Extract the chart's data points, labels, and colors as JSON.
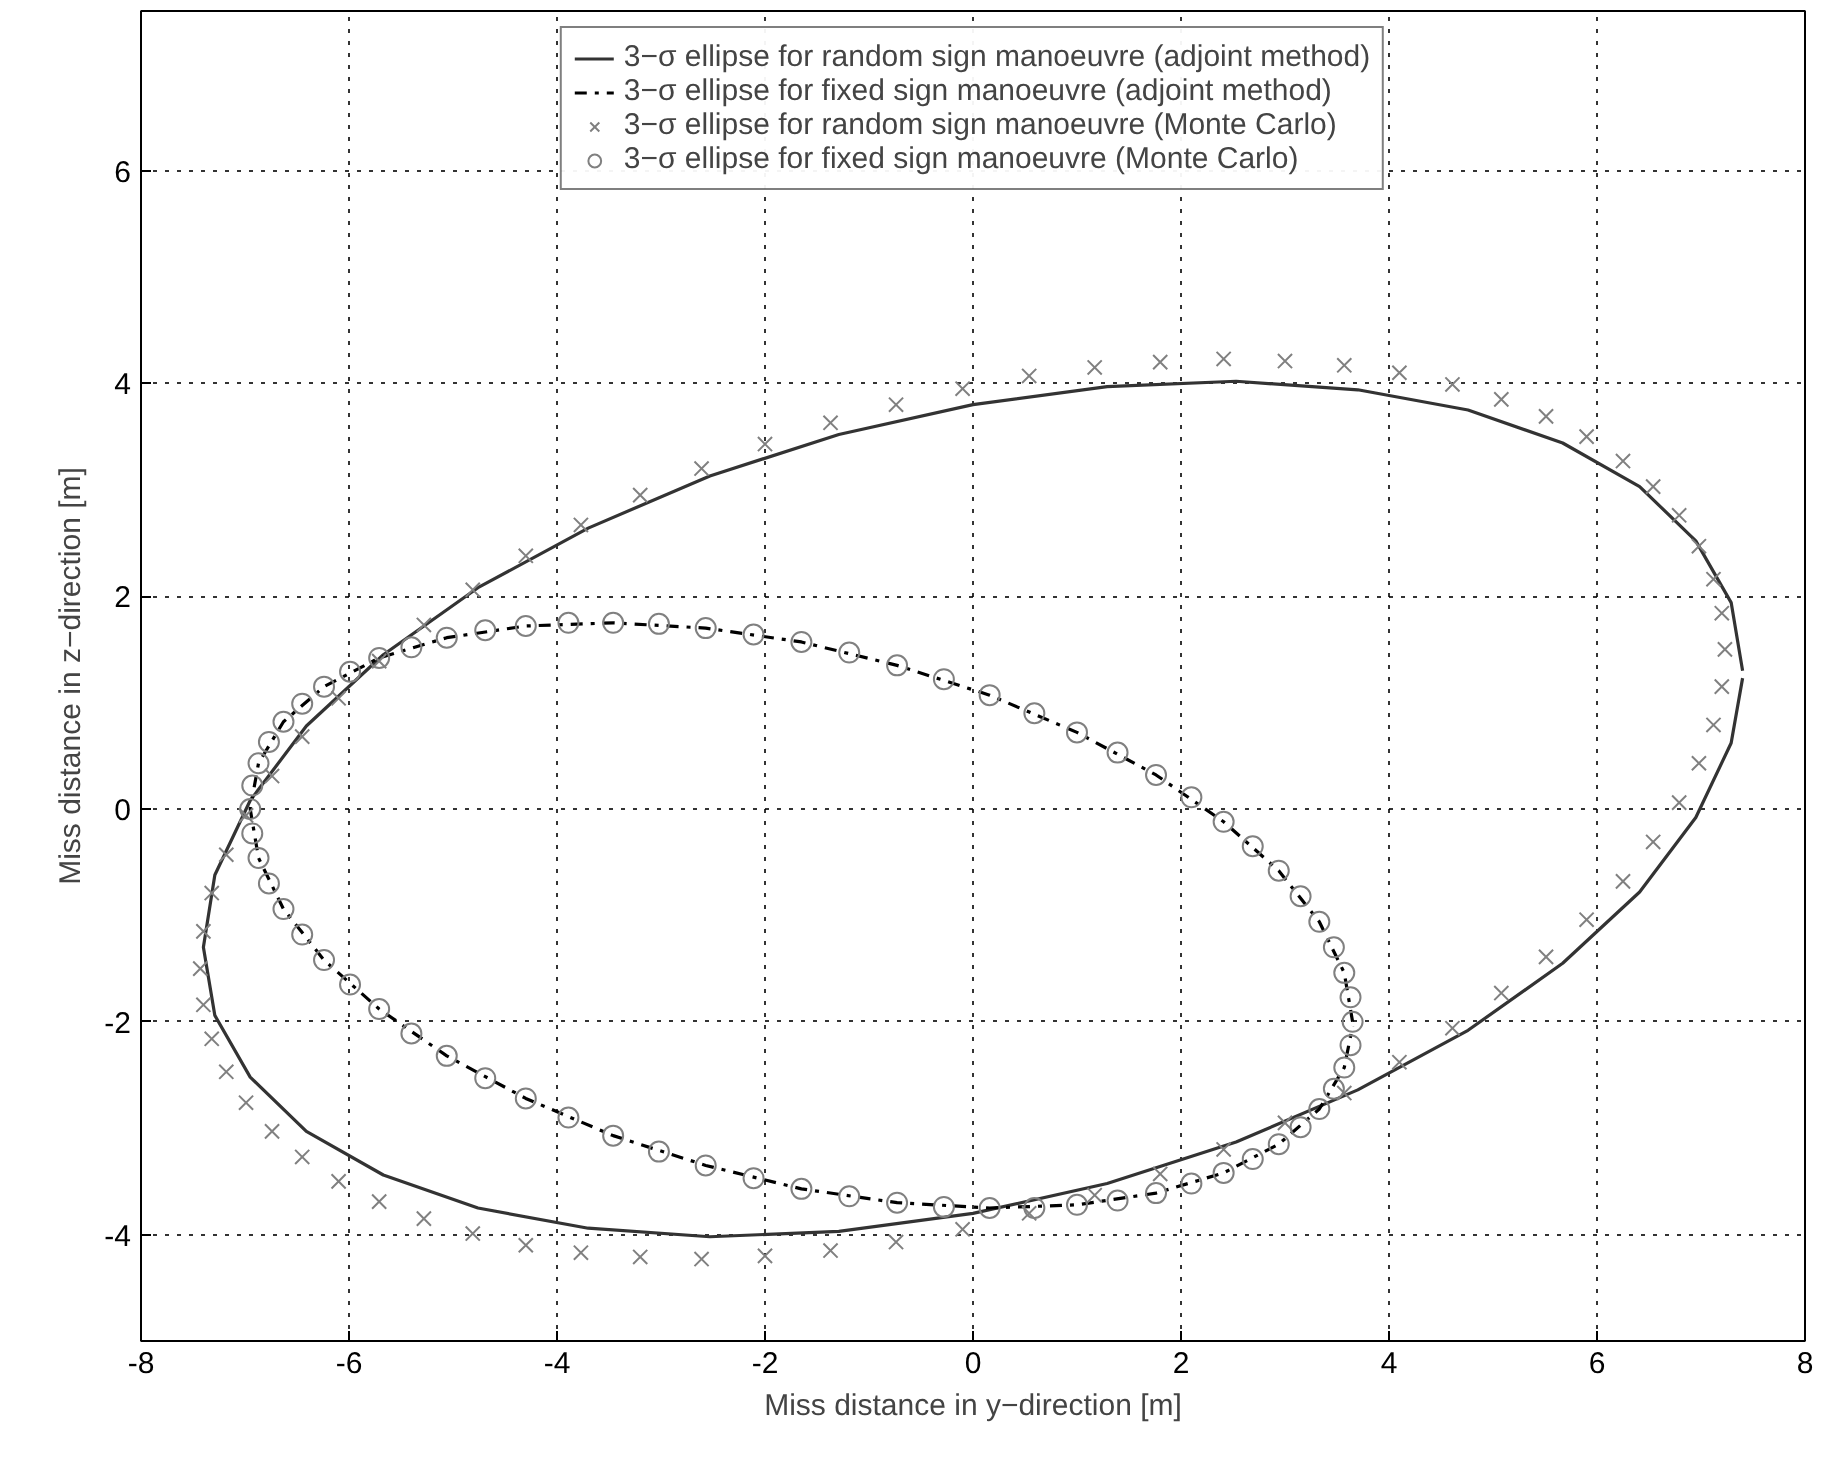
{
  "chart_data": {
    "type": "line",
    "xlabel": "Miss distance in y−direction [m]",
    "ylabel": "Miss distance in z−direction [m]",
    "xlim": [
      -8,
      8
    ],
    "ylim": [
      -5,
      7.5
    ],
    "xticks": [
      -8,
      -6,
      -4,
      -2,
      0,
      2,
      4,
      6,
      8
    ],
    "yticks": [
      -4,
      -2,
      0,
      2,
      4,
      6
    ],
    "grid": true,
    "legend": "top",
    "series": [
      {
        "name": "3−σ ellipse for random sign manoeuvre (adjoint method)",
        "line_style": "solid",
        "marker": "none",
        "color": "#333333",
        "x": [
          7.4,
          7.29,
          6.95,
          6.41,
          5.67,
          4.76,
          3.7,
          2.53,
          1.29,
          0,
          -1.29,
          -2.53,
          -3.7,
          -4.76,
          -5.67,
          -6.41,
          -6.95,
          -7.29,
          -7.4,
          -7.29,
          -6.95,
          -6.41,
          -5.67,
          -4.76,
          -3.7,
          -2.53,
          -1.29,
          0,
          1.29,
          2.53,
          3.7,
          4.76,
          5.67,
          6.41,
          6.95,
          7.29,
          7.4
        ],
        "values": [
          1.3,
          1.94,
          2.52,
          3.03,
          3.44,
          3.75,
          3.94,
          4.02,
          3.97,
          3.8,
          3.52,
          3.13,
          2.64,
          2.08,
          1.45,
          0.78,
          0.08,
          -0.62,
          -1.3,
          -1.94,
          -2.52,
          -3.03,
          -3.44,
          -3.75,
          -3.94,
          -4.02,
          -3.97,
          -3.8,
          -3.52,
          -3.13,
          -2.64,
          -2.08,
          -1.45,
          -0.78,
          -0.08,
          0.62,
          1.23
        ]
      },
      {
        "name": "3−σ ellipse for fixed sign manoeuvre (adjoint method)",
        "line_style": "dashdot",
        "marker": "none",
        "color": "#000000",
        "x": [
          3.65,
          3.57,
          3.33,
          2.94,
          2.41,
          1.76,
          1.0,
          0.16,
          -0.73,
          -1.65,
          -2.57,
          -3.46,
          -4.3,
          -5.06,
          -5.71,
          -6.24,
          -6.63,
          -6.87,
          -6.95,
          -6.87,
          -6.63,
          -6.24,
          -5.71,
          -5.06,
          -4.3,
          -3.46,
          -2.57,
          -1.65,
          -0.73,
          0.16,
          1.0,
          1.76,
          2.41,
          2.94,
          3.33,
          3.57,
          3.65
        ],
        "values": [
          -2.0,
          -1.54,
          -1.06,
          -0.58,
          -0.12,
          0.32,
          0.72,
          1.07,
          1.35,
          1.57,
          1.7,
          1.75,
          1.72,
          1.61,
          1.42,
          1.15,
          0.82,
          0.43,
          0.0,
          -0.46,
          -0.94,
          -1.42,
          -1.88,
          -2.32,
          -2.72,
          -3.07,
          -3.35,
          -3.57,
          -3.7,
          -3.75,
          -3.72,
          -3.61,
          -3.42,
          -3.15,
          -2.82,
          -2.43,
          -2.04
        ]
      },
      {
        "name": "3−σ ellipse for random sign manoeuvre (Monte Carlo)",
        "type": "scatter",
        "marker": "cross",
        "color": "#808080",
        "x": [
          7.23,
          7.2,
          7.12,
          6.98,
          6.79,
          6.54,
          6.25,
          5.9,
          5.51,
          5.08,
          4.61,
          4.1,
          3.57,
          3.0,
          2.41,
          1.8,
          1.17,
          0.54,
          -0.1,
          -0.74,
          -1.37,
          -2.0,
          -2.61,
          -3.2,
          -3.77,
          -4.3,
          -4.81,
          -5.28,
          -5.71,
          -6.1,
          -6.45,
          -6.74,
          -6.99,
          -7.18,
          -7.32,
          -7.4,
          -7.43,
          -7.4,
          -7.32,
          -7.18,
          -6.99,
          -6.74,
          -6.45,
          -6.1,
          -5.71,
          -5.28,
          -4.81,
          -4.3,
          -3.77,
          -3.2,
          -2.61,
          -2.0,
          -1.37,
          -0.74,
          -0.1,
          0.54,
          1.17,
          1.8,
          2.41,
          3.0,
          3.57,
          4.1,
          4.61,
          5.08,
          5.51,
          5.9,
          6.25,
          6.54,
          6.79,
          6.98,
          7.12,
          7.2
        ],
        "values": [
          1.5,
          1.84,
          2.16,
          2.47,
          2.76,
          3.03,
          3.27,
          3.5,
          3.69,
          3.85,
          3.99,
          4.1,
          4.17,
          4.21,
          4.23,
          4.2,
          4.15,
          4.07,
          3.95,
          3.8,
          3.63,
          3.43,
          3.2,
          2.95,
          2.67,
          2.38,
          2.06,
          1.73,
          1.39,
          1.04,
          0.68,
          0.31,
          -0.06,
          -0.43,
          -0.79,
          -1.15,
          -1.5,
          -1.84,
          -2.16,
          -2.47,
          -2.76,
          -3.03,
          -3.27,
          -3.5,
          -3.69,
          -3.85,
          -3.99,
          -4.1,
          -4.17,
          -4.21,
          -4.23,
          -4.2,
          -4.15,
          -4.07,
          -3.95,
          -3.8,
          -3.63,
          -3.43,
          -3.2,
          -2.95,
          -2.67,
          -2.38,
          -2.06,
          -1.73,
          -1.39,
          -1.04,
          -0.68,
          -0.31,
          0.06,
          0.43,
          0.79,
          1.15
        ]
      },
      {
        "name": "3−σ ellipse for fixed sign manoeuvre (Monte Carlo)",
        "type": "scatter",
        "marker": "circle",
        "color": "#808080",
        "x": [
          3.65,
          3.63,
          3.57,
          3.47,
          3.33,
          3.15,
          2.94,
          2.69,
          2.41,
          2.1,
          1.76,
          1.39,
          1.0,
          0.59,
          0.16,
          -0.28,
          -0.73,
          -1.19,
          -1.65,
          -2.11,
          -2.57,
          -3.02,
          -3.46,
          -3.89,
          -4.3,
          -4.69,
          -5.06,
          -5.4,
          -5.71,
          -5.99,
          -6.24,
          -6.45,
          -6.63,
          -6.77,
          -6.87,
          -6.93,
          -6.95,
          -6.93,
          -6.87,
          -6.77,
          -6.63,
          -6.45,
          -6.24,
          -5.99,
          -5.71,
          -5.4,
          -5.06,
          -4.69,
          -4.3,
          -3.89,
          -3.46,
          -3.02,
          -2.57,
          -2.11,
          -1.65,
          -1.19,
          -0.73,
          -0.28,
          0.16,
          0.59,
          1.0,
          1.39,
          1.76,
          2.1,
          2.41,
          2.69,
          2.94,
          3.15,
          3.33,
          3.47,
          3.57,
          3.63
        ],
        "values": [
          -2.0,
          -1.77,
          -1.54,
          -1.3,
          -1.06,
          -0.82,
          -0.58,
          -0.35,
          -0.12,
          0.11,
          0.32,
          0.53,
          0.72,
          0.9,
          1.07,
          1.22,
          1.35,
          1.47,
          1.57,
          1.64,
          1.7,
          1.74,
          1.75,
          1.75,
          1.72,
          1.68,
          1.61,
          1.52,
          1.42,
          1.29,
          1.15,
          0.99,
          0.82,
          0.63,
          0.43,
          0.22,
          0.0,
          -0.23,
          -0.46,
          -0.7,
          -0.94,
          -1.18,
          -1.42,
          -1.65,
          -1.88,
          -2.11,
          -2.32,
          -2.53,
          -2.72,
          -2.9,
          -3.07,
          -3.22,
          -3.35,
          -3.47,
          -3.57,
          -3.64,
          -3.7,
          -3.74,
          -3.75,
          -3.75,
          -3.72,
          -3.68,
          -3.61,
          -3.52,
          -3.42,
          -3.29,
          -3.15,
          -2.99,
          -2.82,
          -2.63,
          -2.43,
          -2.22
        ]
      }
    ]
  }
}
